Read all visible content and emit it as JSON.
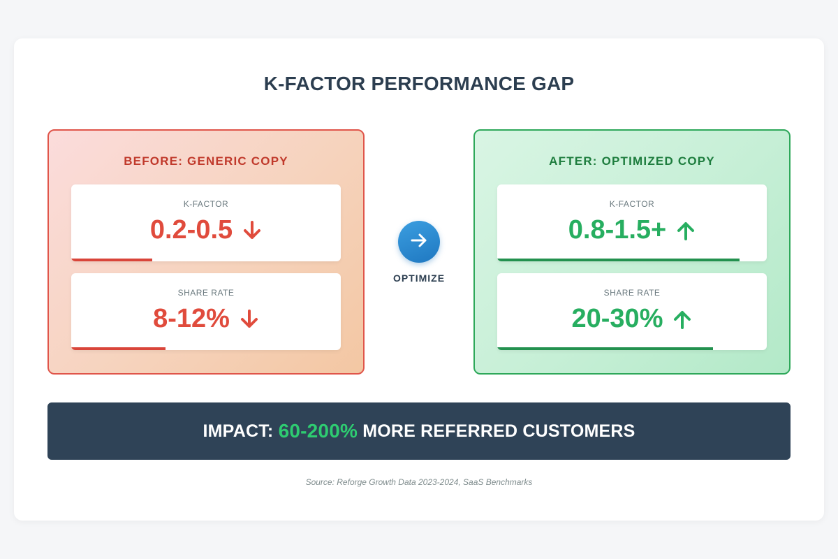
{
  "title": "K-FACTOR PERFORMANCE GAP",
  "before": {
    "title": "BEFORE: GENERIC COPY",
    "metrics": [
      {
        "label": "K-FACTOR",
        "value": "0.2-0.5",
        "trend": "down",
        "fill": 0.3
      },
      {
        "label": "SHARE RATE",
        "value": "8-12%",
        "trend": "down",
        "fill": 0.35
      }
    ]
  },
  "connector": {
    "icon": "arrow-right-icon",
    "label": "OPTIMIZE"
  },
  "after": {
    "title": "AFTER: OPTIMIZED COPY",
    "metrics": [
      {
        "label": "K-FACTOR",
        "value": "0.8-1.5+",
        "trend": "up",
        "fill": 0.9
      },
      {
        "label": "SHARE RATE",
        "value": "20-30%",
        "trend": "up",
        "fill": 0.8
      }
    ]
  },
  "impact": {
    "prefix": "IMPACT: ",
    "highlight": "60-200%",
    "suffix": " MORE REFERRED CUSTOMERS"
  },
  "source": "Source: Reforge Growth Data 2023-2024, SaaS Benchmarks",
  "colors": {
    "negative": "#e04b3c",
    "positive": "#27ae60",
    "accent": "#1f78c1",
    "impact_bg": "#2f4357"
  }
}
